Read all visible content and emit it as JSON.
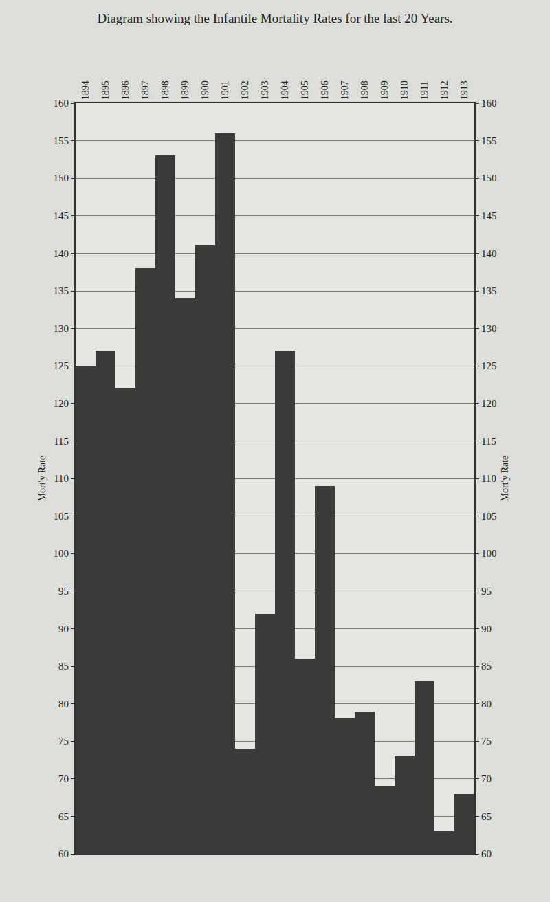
{
  "chart_data": {
    "type": "bar",
    "title": "Diagram showing the Infantile Mortality Rates for the last 20 Years.",
    "y_label": "Mort'y Rate",
    "categories": [
      "1894",
      "1895",
      "1896",
      "1897",
      "1898",
      "1899",
      "1900",
      "1901",
      "1902",
      "1903",
      "1904",
      "1905",
      "1906",
      "1907",
      "1908",
      "1909",
      "1910",
      "1911",
      "1912",
      "1913"
    ],
    "values": [
      125,
      127,
      122,
      138,
      153,
      134,
      141,
      156,
      74,
      92,
      127,
      86,
      109,
      78,
      79,
      69,
      73,
      83,
      63,
      68
    ],
    "color": "#3b3b3b",
    "ylim": [
      60,
      160
    ],
    "yticks": [
      60,
      65,
      70,
      75,
      80,
      85,
      90,
      95,
      100,
      105,
      110,
      115,
      120,
      125,
      130,
      135,
      140,
      145,
      150,
      155,
      160
    ],
    "grid": true
  }
}
